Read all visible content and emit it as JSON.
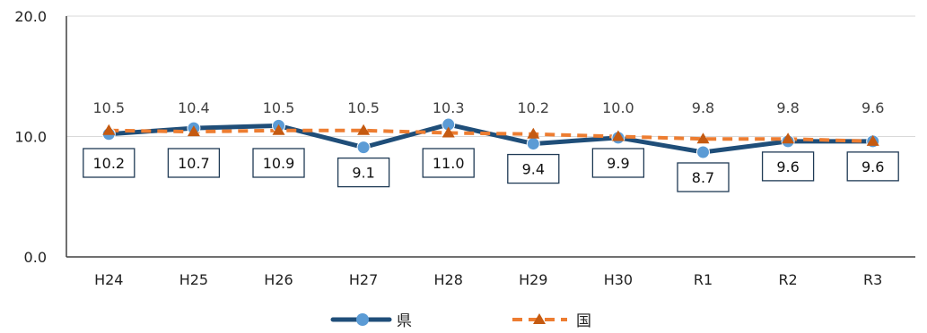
{
  "chart_data": {
    "type": "line",
    "title": "",
    "xlabel": "",
    "ylabel": "",
    "categories": [
      "H24",
      "H25",
      "H26",
      "H27",
      "H28",
      "H29",
      "H30",
      "R1",
      "R2",
      "R3"
    ],
    "ylim": [
      0,
      20
    ],
    "yticks": [
      "0.0",
      "10.0",
      "20.0"
    ],
    "grid": "horizontal",
    "legend": "bottom",
    "series": [
      {
        "name": "県",
        "values": [
          10.2,
          10.7,
          10.9,
          9.1,
          11.0,
          9.4,
          9.9,
          8.7,
          9.6,
          9.6
        ],
        "labels": [
          "10.2",
          "10.7",
          "10.9",
          "9.1",
          "11.0",
          "9.4",
          "9.9",
          "8.7",
          "9.6",
          "9.6"
        ],
        "color": "#1f4e79",
        "marker_color": "#5b9bd5",
        "style": "solid",
        "marker": "circle"
      },
      {
        "name": "国",
        "values": [
          10.5,
          10.4,
          10.5,
          10.5,
          10.3,
          10.2,
          10.0,
          9.8,
          9.8,
          9.6
        ],
        "labels": [
          "10.5",
          "10.4",
          "10.5",
          "10.5",
          "10.3",
          "10.2",
          "10.0",
          "9.8",
          "9.8",
          "9.6"
        ],
        "color": "#ed7d31",
        "marker_color": "#c55a11",
        "style": "dashed",
        "marker": "triangle"
      }
    ]
  }
}
